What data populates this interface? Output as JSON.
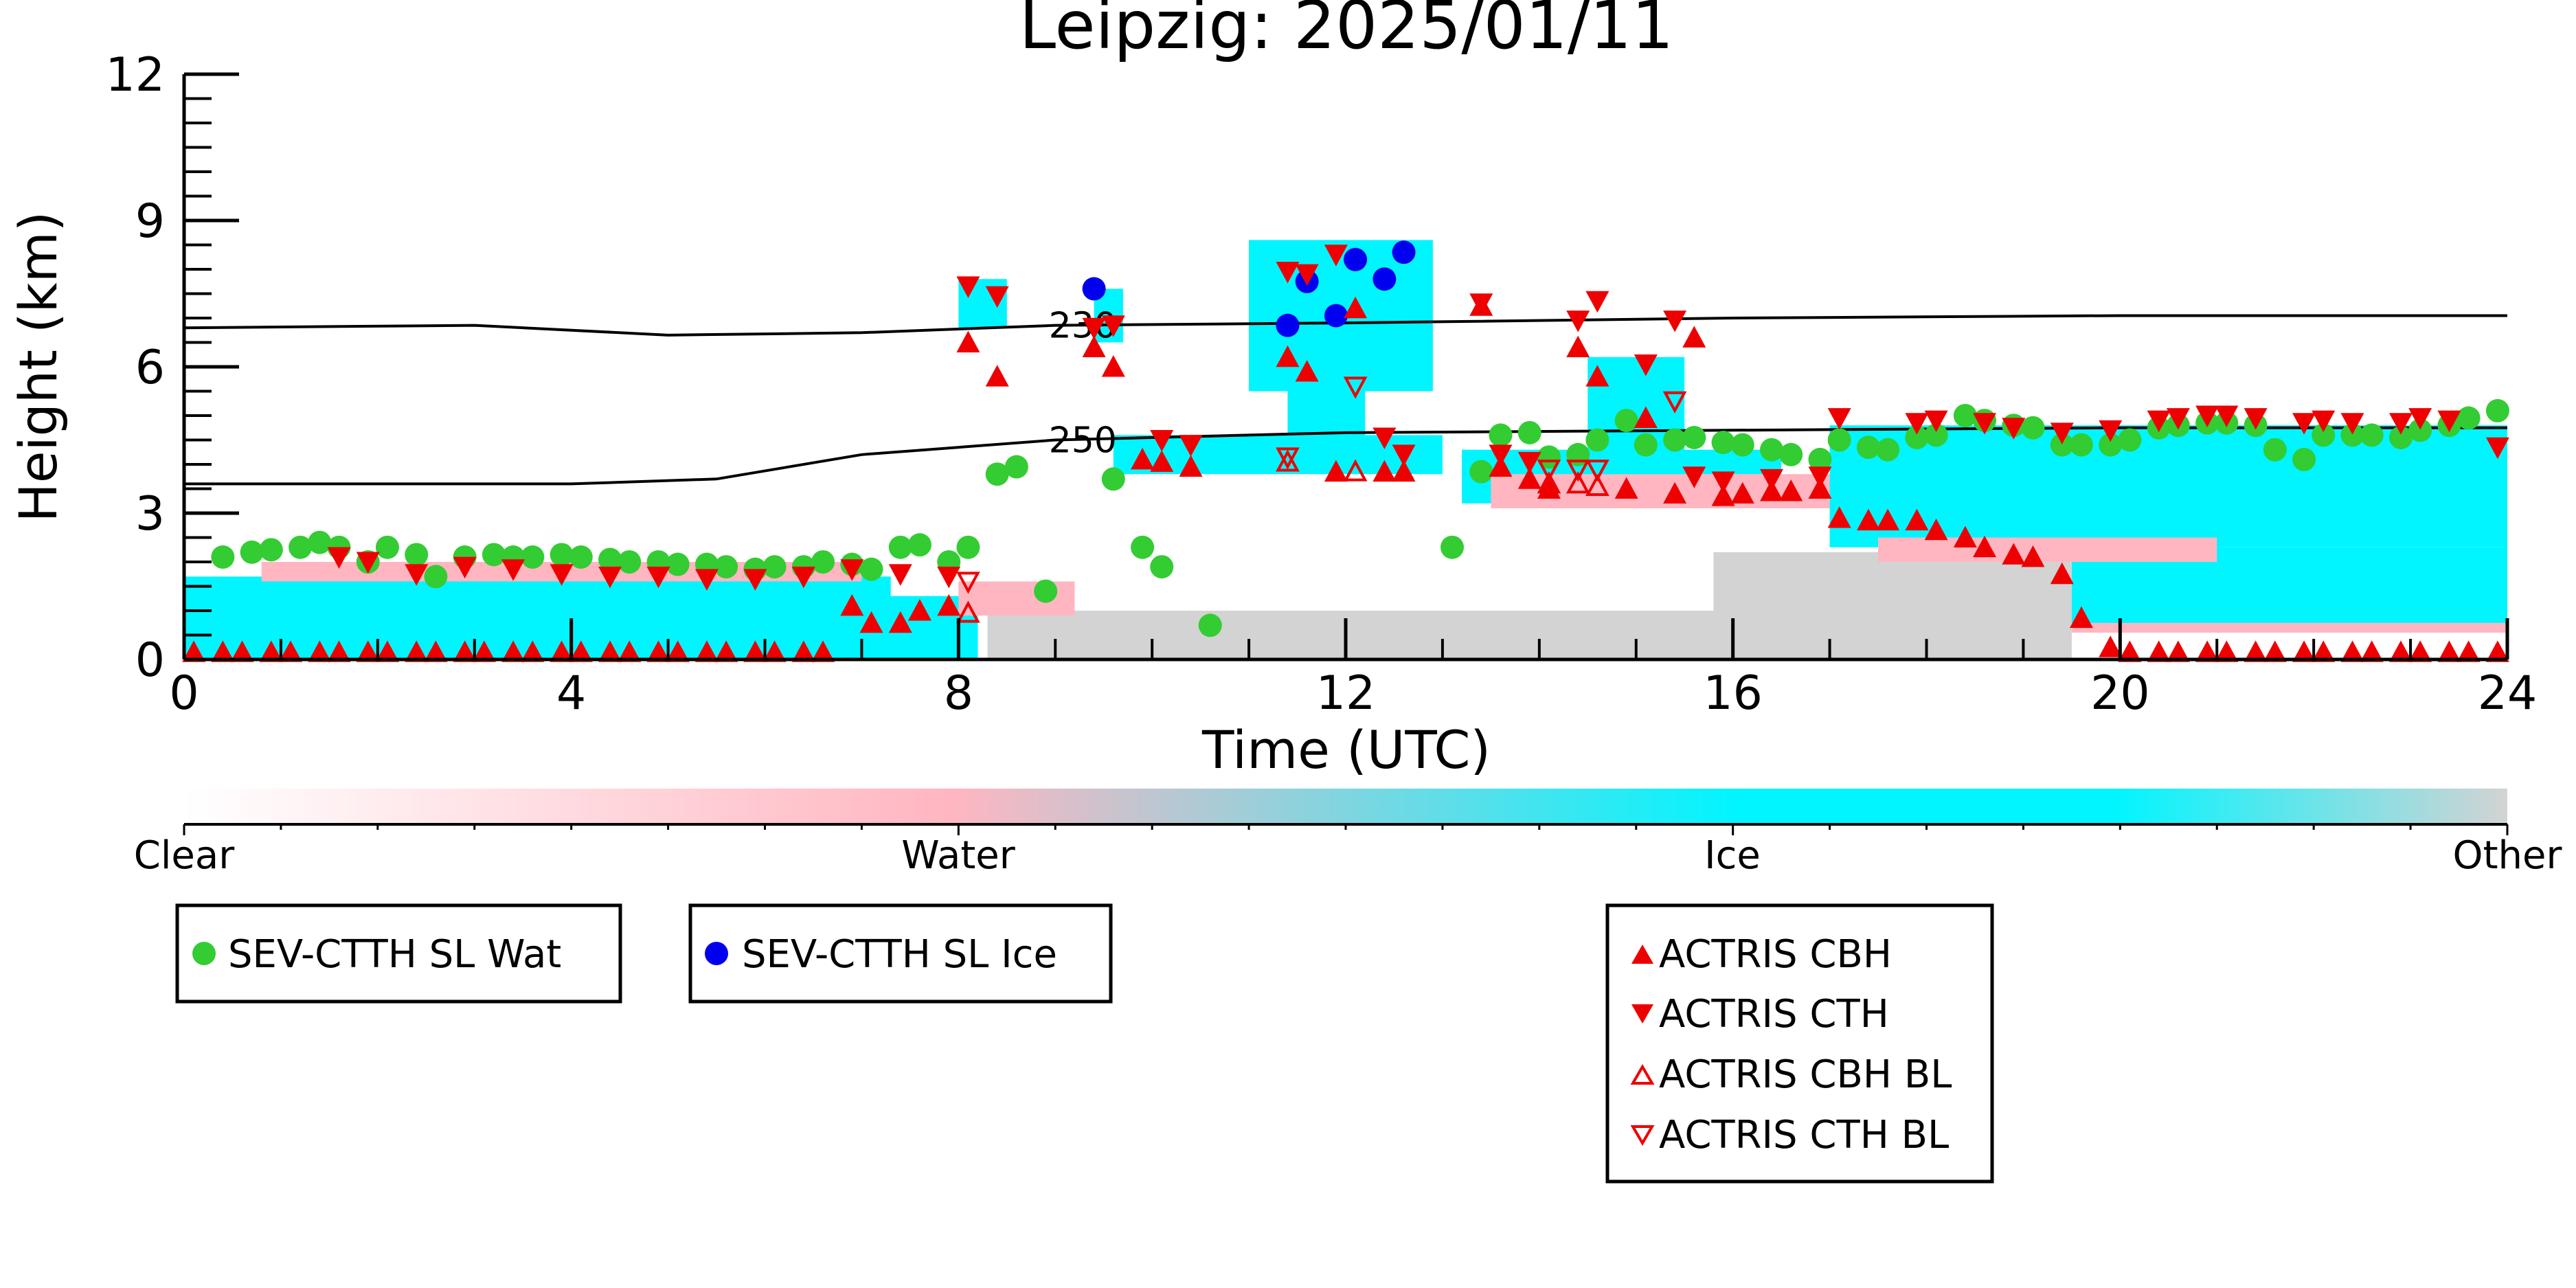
{
  "chart_data": {
    "type": "scatter",
    "title": "Leipzig: 2025/01/11",
    "xlabel": "Time (UTC)",
    "ylabel": "Height (km)",
    "xlim": [
      0,
      24
    ],
    "ylim": [
      0,
      12
    ],
    "xticks": [
      "0",
      "4",
      "8",
      "12",
      "16",
      "20",
      "24"
    ],
    "yticks": [
      "0",
      "3",
      "6",
      "9",
      "12"
    ],
    "colorbar": {
      "labels": [
        "Clear",
        "Water",
        "Ice",
        "Other"
      ],
      "colors": [
        "#ffffff",
        "#ffb6c1",
        "#00f5ff",
        "#d3d3d3"
      ]
    },
    "contours": [
      {
        "label": "230",
        "x": [
          0,
          3,
          5,
          7,
          9,
          12,
          16,
          20,
          24
        ],
        "y": [
          6.8,
          6.85,
          6.65,
          6.7,
          6.85,
          6.9,
          7.0,
          7.05,
          7.05
        ]
      },
      {
        "label": "250",
        "x": [
          0,
          4,
          5.5,
          7,
          9,
          12,
          16,
          20,
          24
        ],
        "y": [
          3.6,
          3.6,
          3.7,
          4.2,
          4.5,
          4.65,
          4.7,
          4.75,
          4.75
        ]
      }
    ],
    "series": [
      {
        "name": "SEV-CTTH SL Wat",
        "color": "#33cc33",
        "marker": "circle",
        "x": [
          0.4,
          0.7,
          0.9,
          1.2,
          1.4,
          1.6,
          1.9,
          2.1,
          2.4,
          2.6,
          2.9,
          3.2,
          3.4,
          3.6,
          3.9,
          4.1,
          4.4,
          4.6,
          4.9,
          5.1,
          5.4,
          5.6,
          5.9,
          6.1,
          6.4,
          6.6,
          6.9,
          7.1,
          7.4,
          7.6,
          7.9,
          8.1,
          8.4,
          8.6,
          8.9,
          9.6,
          9.9,
          10.1,
          10.6,
          13.1,
          13.4,
          13.6,
          13.9,
          14.1,
          14.4,
          14.6,
          14.9,
          15.1,
          15.4,
          15.6,
          15.9,
          16.1,
          16.4,
          16.6,
          16.9,
          17.1,
          17.4,
          17.6,
          17.9,
          18.1,
          18.4,
          18.6,
          18.9,
          19.1,
          19.4,
          19.6,
          19.9,
          20.1,
          20.4,
          20.6,
          20.9,
          21.1,
          21.4,
          21.6,
          21.9,
          22.1,
          22.4,
          22.6,
          22.9,
          23.1,
          23.4,
          23.6,
          23.9
        ],
        "y": [
          2.1,
          2.2,
          2.25,
          2.3,
          2.4,
          2.3,
          2.0,
          2.3,
          2.15,
          1.7,
          2.1,
          2.15,
          2.1,
          2.1,
          2.15,
          2.1,
          2.05,
          2.0,
          2.0,
          1.95,
          1.95,
          1.9,
          1.85,
          1.9,
          1.9,
          2.0,
          1.95,
          1.85,
          2.3,
          2.35,
          2.0,
          2.3,
          3.8,
          3.95,
          1.4,
          3.7,
          2.3,
          1.9,
          0.7,
          2.3,
          3.85,
          4.6,
          4.65,
          4.15,
          4.2,
          4.5,
          4.9,
          4.4,
          4.5,
          4.55,
          4.45,
          4.4,
          4.3,
          4.2,
          4.1,
          4.5,
          4.35,
          4.3,
          4.55,
          4.6,
          5.0,
          4.9,
          4.8,
          4.75,
          4.4,
          4.4,
          4.4,
          4.5,
          4.75,
          4.8,
          4.85,
          4.85,
          4.8,
          4.3,
          4.1,
          4.6,
          4.6,
          4.6,
          4.55,
          4.7,
          4.8,
          4.95,
          5.1
        ]
      },
      {
        "name": "SEV-CTTH SL Ice",
        "color": "#0000ee",
        "marker": "circle",
        "x": [
          9.4,
          11.4,
          11.6,
          11.9,
          12.1,
          12.4,
          12.6
        ],
        "y": [
          7.6,
          6.85,
          7.75,
          7.05,
          8.2,
          7.8,
          8.35
        ]
      },
      {
        "name": "ACTRIS CBH",
        "color": "#ee0000",
        "marker": "triangle-up",
        "x": [
          0.1,
          0.4,
          0.6,
          0.9,
          1.1,
          1.4,
          1.6,
          1.9,
          2.1,
          2.4,
          2.6,
          2.9,
          3.1,
          3.4,
          3.6,
          3.9,
          4.1,
          4.4,
          4.6,
          4.9,
          5.1,
          5.4,
          5.6,
          5.9,
          6.1,
          6.4,
          6.6,
          6.9,
          7.1,
          7.4,
          7.6,
          7.9,
          8.1,
          8.4,
          9.4,
          9.6,
          9.9,
          10.1,
          10.4,
          11.4,
          11.6,
          11.9,
          12.1,
          12.4,
          12.6,
          13.4,
          13.6,
          13.9,
          14.1,
          14.4,
          14.6,
          14.9,
          15.1,
          15.4,
          15.6,
          15.9,
          16.1,
          16.4,
          16.6,
          16.9,
          17.1,
          17.4,
          17.6,
          17.9,
          18.1,
          18.4,
          18.6,
          18.9,
          19.1,
          19.4,
          19.6,
          19.9,
          20.1,
          20.4,
          20.6,
          20.9,
          21.1,
          21.4,
          21.6,
          21.9,
          22.1,
          22.4,
          22.6,
          22.9,
          23.1,
          23.4,
          23.6,
          23.9
        ],
        "y": [
          0.15,
          0.15,
          0.15,
          0.15,
          0.15,
          0.15,
          0.15,
          0.15,
          0.15,
          0.15,
          0.15,
          0.15,
          0.15,
          0.15,
          0.15,
          0.15,
          0.15,
          0.15,
          0.15,
          0.15,
          0.15,
          0.15,
          0.15,
          0.15,
          0.15,
          0.15,
          0.15,
          1.1,
          0.75,
          0.75,
          1.0,
          1.1,
          6.5,
          5.8,
          6.4,
          6.0,
          4.1,
          4.05,
          3.95,
          6.2,
          5.9,
          3.85,
          7.2,
          3.85,
          3.85,
          7.25,
          3.95,
          3.7,
          3.5,
          6.4,
          5.8,
          3.5,
          4.95,
          3.4,
          6.6,
          3.35,
          3.4,
          3.45,
          3.45,
          3.5,
          2.9,
          2.85,
          2.85,
          2.85,
          2.65,
          2.5,
          2.3,
          2.15,
          2.1,
          1.75,
          0.85,
          0.25,
          0.15,
          0.15,
          0.15,
          0.15,
          0.15,
          0.15,
          0.15,
          0.15,
          0.15,
          0.15,
          0.15,
          0.15,
          0.15,
          0.15,
          0.15,
          0.15
        ]
      },
      {
        "name": "ACTRIS CTH",
        "color": "#ee0000",
        "marker": "triangle-down",
        "x": [
          1.6,
          1.9,
          2.4,
          2.9,
          3.4,
          3.9,
          4.4,
          4.9,
          5.4,
          5.9,
          6.4,
          6.9,
          7.4,
          7.9,
          8.1,
          8.4,
          9.4,
          9.6,
          10.1,
          10.4,
          11.4,
          11.6,
          11.9,
          12.4,
          12.6,
          13.4,
          13.6,
          13.9,
          14.4,
          14.6,
          15.1,
          15.4,
          15.6,
          15.9,
          16.4,
          16.9,
          17.1,
          17.9,
          18.1,
          18.6,
          18.9,
          19.4,
          19.9,
          20.4,
          20.6,
          20.9,
          21.1,
          21.4,
          21.9,
          22.1,
          22.4,
          22.9,
          23.1,
          23.4,
          23.9
        ],
        "y": [
          2.1,
          2.0,
          1.75,
          1.9,
          1.85,
          1.75,
          1.7,
          1.7,
          1.65,
          1.65,
          1.7,
          1.85,
          1.75,
          1.7,
          7.65,
          7.45,
          6.8,
          6.85,
          4.5,
          4.4,
          7.95,
          7.9,
          8.3,
          4.55,
          4.2,
          7.3,
          4.2,
          4.05,
          6.95,
          7.35,
          6.05,
          6.95,
          3.75,
          3.65,
          3.7,
          3.75,
          4.95,
          4.85,
          4.9,
          4.85,
          4.75,
          4.65,
          4.7,
          4.9,
          4.95,
          5.0,
          5.0,
          4.95,
          4.85,
          4.9,
          4.85,
          4.85,
          4.95,
          4.9,
          4.35
        ]
      },
      {
        "name": "ACTRIS CBH BL",
        "color": "#ee0000",
        "marker": "triangle-up-open",
        "x": [
          8.1,
          11.4,
          12.1,
          14.1,
          14.4,
          14.6
        ],
        "y": [
          0.95,
          4.05,
          3.85,
          3.6,
          3.6,
          3.55
        ]
      },
      {
        "name": "ACTRIS CTH BL",
        "color": "#ee0000",
        "marker": "triangle-down-open",
        "x": [
          8.1,
          11.4,
          12.1,
          14.1,
          14.4,
          14.6,
          15.4
        ],
        "y": [
          1.6,
          4.15,
          5.6,
          3.9,
          3.9,
          3.9,
          5.3
        ]
      }
    ],
    "legend_boxes": [
      {
        "entries": [
          "SEV-CTTH SL Wat"
        ]
      },
      {
        "entries": [
          "SEV-CTTH SL Ice"
        ]
      },
      {
        "entries": [
          "ACTRIS CBH",
          "ACTRIS CTH",
          "ACTRIS CBH BL",
          "ACTRIS CTH BL"
        ]
      }
    ],
    "grid": false
  }
}
